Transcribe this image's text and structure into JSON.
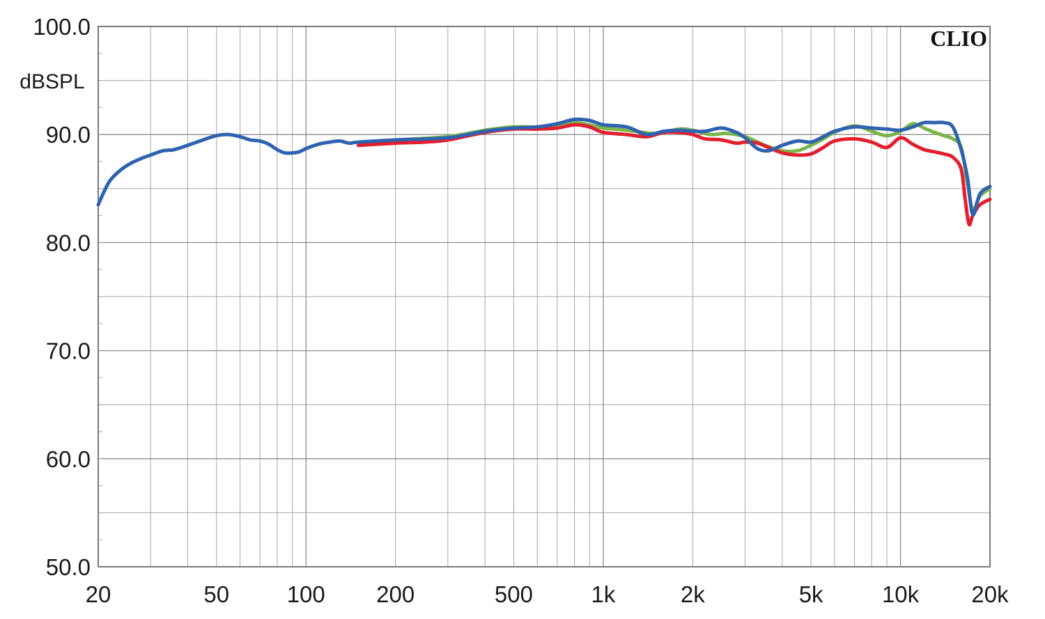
{
  "chart_data": {
    "type": "line",
    "brand": "CLIO",
    "ylabel": "dBSPL",
    "x_scale": "log",
    "xlim": [
      20,
      20000
    ],
    "ylim": [
      50,
      100
    ],
    "grid": true,
    "x_ticks": [
      {
        "value": 20,
        "label": "20"
      },
      {
        "value": 50,
        "label": "50"
      },
      {
        "value": 100,
        "label": "100"
      },
      {
        "value": 200,
        "label": "200"
      },
      {
        "value": 500,
        "label": "500"
      },
      {
        "value": 1000,
        "label": "1k"
      },
      {
        "value": 2000,
        "label": "2k"
      },
      {
        "value": 5000,
        "label": "5k"
      },
      {
        "value": 10000,
        "label": "10k"
      },
      {
        "value": 20000,
        "label": "20k"
      }
    ],
    "y_ticks": [
      {
        "value": 100,
        "label": "100.0"
      },
      {
        "value": 90,
        "label": "90.0"
      },
      {
        "value": 80,
        "label": "80.0"
      },
      {
        "value": 70,
        "label": "70.0"
      },
      {
        "value": 60,
        "label": "60.0"
      },
      {
        "value": 50,
        "label": "50.0"
      }
    ],
    "series": [
      {
        "color": "#7ab648",
        "x": [
          150,
          200,
          300,
          400,
          500,
          600,
          700,
          800,
          900,
          1000,
          1200,
          1500,
          1800,
          2000,
          2300,
          2600,
          3000,
          3500,
          4000,
          4500,
          5000,
          5500,
          6000,
          7000,
          8000,
          9000,
          10000,
          11000,
          12000,
          13000,
          14000,
          15000,
          16000,
          16800,
          17500,
          18500,
          20000
        ],
        "y": [
          89.3,
          89.5,
          89.8,
          90.4,
          90.7,
          90.7,
          90.9,
          91.1,
          90.9,
          90.6,
          90.4,
          90.1,
          90.5,
          90.4,
          90.0,
          90.1,
          89.8,
          89.0,
          88.5,
          88.5,
          89.0,
          89.6,
          90.2,
          90.8,
          90.3,
          89.9,
          90.3,
          91.0,
          90.6,
          90.2,
          89.9,
          89.6,
          88.8,
          85.5,
          83.0,
          84.3,
          85.0
        ]
      },
      {
        "color": "#e31e2d",
        "x": [
          150,
          200,
          250,
          300,
          400,
          500,
          600,
          700,
          800,
          900,
          1000,
          1200,
          1400,
          1600,
          1800,
          2000,
          2200,
          2500,
          2800,
          3000,
          3300,
          3600,
          4000,
          4500,
          5000,
          5500,
          6000,
          7000,
          8000,
          9000,
          10000,
          11000,
          12000,
          13000,
          14000,
          15000,
          16000,
          16500,
          17000,
          17500,
          18500,
          20000
        ],
        "y": [
          89.0,
          89.2,
          89.3,
          89.5,
          90.2,
          90.5,
          90.5,
          90.6,
          90.9,
          90.7,
          90.2,
          90.0,
          89.8,
          90.2,
          90.2,
          90.0,
          89.6,
          89.5,
          89.2,
          89.3,
          89.2,
          88.8,
          88.3,
          88.1,
          88.2,
          88.8,
          89.4,
          89.6,
          89.3,
          88.8,
          89.7,
          89.1,
          88.6,
          88.4,
          88.2,
          87.9,
          86.8,
          84.0,
          81.7,
          82.5,
          83.5,
          84.0
        ]
      },
      {
        "color": "#2f62b0",
        "x": [
          20,
          21,
          22,
          24,
          26,
          28,
          30,
          33,
          36,
          40,
          45,
          50,
          55,
          60,
          65,
          70,
          75,
          80,
          85,
          90,
          95,
          100,
          110,
          120,
          130,
          140,
          150,
          200,
          300,
          400,
          500,
          600,
          700,
          800,
          900,
          1000,
          1200,
          1400,
          1600,
          1800,
          2000,
          2200,
          2500,
          2800,
          3000,
          3300,
          3600,
          4000,
          4500,
          5000,
          5500,
          6000,
          7000,
          8000,
          9000,
          10000,
          11000,
          12000,
          13000,
          14000,
          15000,
          16000,
          16800,
          17500,
          18500,
          20000
        ],
        "y": [
          83.5,
          84.8,
          85.8,
          86.8,
          87.4,
          87.8,
          88.1,
          88.5,
          88.6,
          89.0,
          89.5,
          89.9,
          90.0,
          89.8,
          89.5,
          89.4,
          89.1,
          88.6,
          88.3,
          88.3,
          88.4,
          88.7,
          89.1,
          89.3,
          89.4,
          89.2,
          89.3,
          89.5,
          89.7,
          90.3,
          90.6,
          90.7,
          91.0,
          91.4,
          91.3,
          90.9,
          90.7,
          90.0,
          90.3,
          90.4,
          90.3,
          90.3,
          90.6,
          90.2,
          89.7,
          88.7,
          88.5,
          89.0,
          89.4,
          89.3,
          89.8,
          90.3,
          90.7,
          90.6,
          90.5,
          90.4,
          90.7,
          91.1,
          91.1,
          91.1,
          90.7,
          88.6,
          86.0,
          82.6,
          84.5,
          85.2
        ]
      }
    ]
  }
}
